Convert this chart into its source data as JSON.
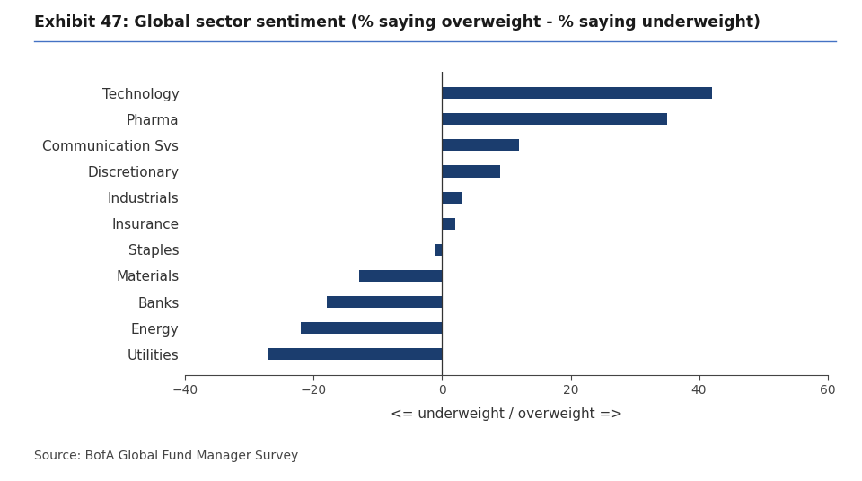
{
  "title": "Exhibit 47: Global sector sentiment (% saying overweight - % saying underweight)",
  "categories": [
    "Technology",
    "Pharma",
    "Communication Svs",
    "Discretionary",
    "Industrials",
    "Insurance",
    "Staples",
    "Materials",
    "Banks",
    "Energy",
    "Utilities"
  ],
  "values": [
    42,
    35,
    12,
    9,
    3,
    2,
    -1,
    -13,
    -18,
    -22,
    -27
  ],
  "bar_color": "#1b3d6e",
  "xlabel": "<= underweight / overweight =>",
  "xlim": [
    -40,
    60
  ],
  "xticks": [
    -40,
    -20,
    0,
    20,
    40,
    60
  ],
  "background_color": "#ffffff",
  "title_color": "#1a1a1a",
  "source_text": "Source: BofA Global Fund Manager Survey",
  "title_fontsize": 12.5,
  "label_fontsize": 11,
  "tick_fontsize": 10,
  "source_fontsize": 10,
  "bar_height": 0.45
}
